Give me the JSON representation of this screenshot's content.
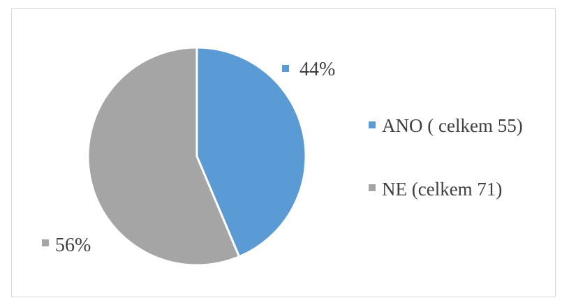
{
  "chart_data": {
    "type": "pie",
    "title": "",
    "categories": [
      "ANO ( celkem 55)",
      "NE (celkem 71)"
    ],
    "values": [
      55,
      71
    ],
    "data_labels": [
      "44%",
      "56%"
    ],
    "colors": [
      "#5b9bd5",
      "#a5a5a5"
    ],
    "legend_position": "right",
    "start_angle_deg": 0,
    "direction": "clockwise"
  }
}
